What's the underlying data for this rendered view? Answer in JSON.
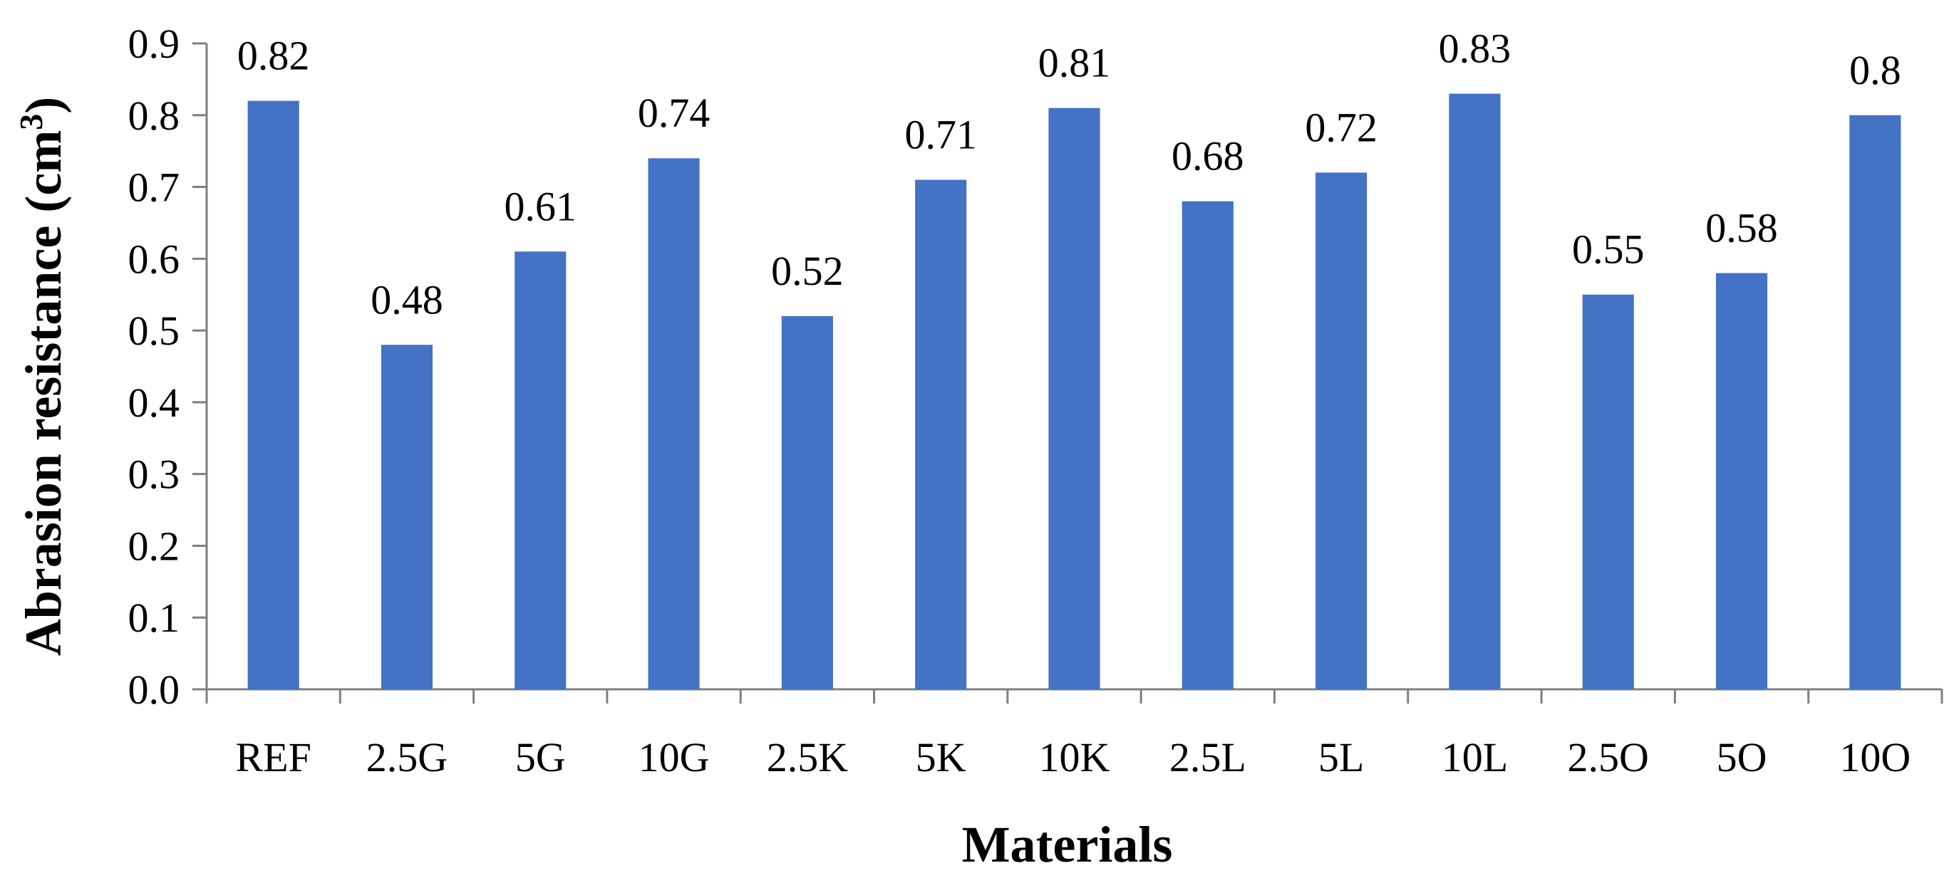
{
  "chart_data": {
    "type": "bar",
    "categories": [
      "REF",
      "2.5G",
      "5G",
      "10G",
      "2.5K",
      "5K",
      "10K",
      "2.5L",
      "5L",
      "10L",
      "2.5O",
      "5O",
      "10O"
    ],
    "values": [
      0.82,
      0.48,
      0.61,
      0.74,
      0.52,
      0.71,
      0.81,
      0.68,
      0.72,
      0.83,
      0.55,
      0.58,
      0.8
    ],
    "data_labels": [
      "0.82",
      "0.48",
      "0.61",
      "0.74",
      "0.52",
      "0.71",
      "0.81",
      "0.68",
      "0.72",
      "0.83",
      "0.55",
      "0.58",
      "0.8"
    ],
    "xlabel": "Materials",
    "ylabel_main": "Abrasion resistance (cm",
    "ylabel_sup": "3",
    "ylabel_end": ")",
    "ylim": [
      0,
      0.9
    ],
    "yticks": [
      "0.0",
      "0.1",
      "0.2",
      "0.3",
      "0.4",
      "0.5",
      "0.6",
      "0.7",
      "0.8",
      "0.9"
    ],
    "grid": false,
    "legend": "none",
    "bar_color": "#4472C4",
    "axis_color": "#7F7F7F"
  }
}
